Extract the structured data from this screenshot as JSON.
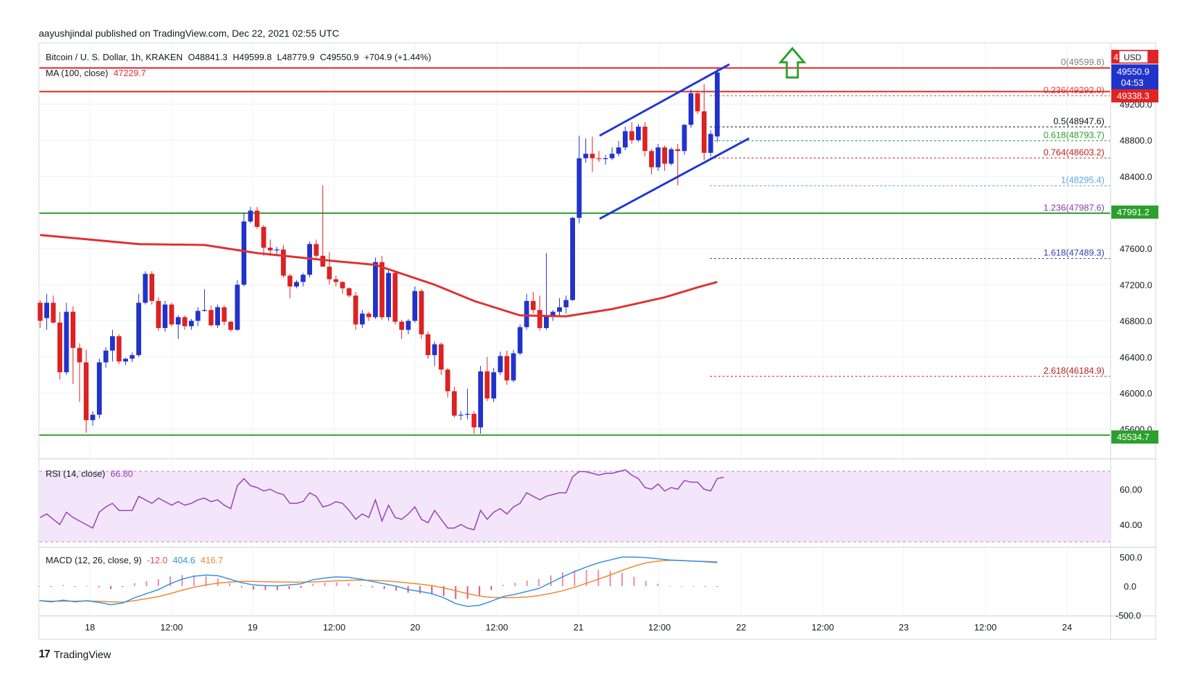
{
  "header": {
    "published": "aayushjindal published on TradingView.com, Dec 22, 2021 02:55 UTC"
  },
  "footer": {
    "brand": "TradingView",
    "mark": "17"
  },
  "legend": {
    "symbol": "Bitcoin / U. S. Dollar, 1h, KRAKEN",
    "open": "O48841.3",
    "high": "H49599.8",
    "low": "L48779.9",
    "close": "C49550.9",
    "change": "+704.9 (+1.44%)",
    "ma_label": "MA (100, close)",
    "ma_value": "47229.7",
    "rsi_label": "RSI (14, close)",
    "rsi_value": "66.80",
    "macd_label": "MACD (12, 26, close, 9)",
    "macd_hist": "-12.0",
    "macd_line": "404.6",
    "macd_signal": "416.7"
  },
  "colors": {
    "up": "#2233cc",
    "down": "#dd2222",
    "ma": "#e03030",
    "support": "#2ca02c",
    "resistance": "#e02424",
    "channel": "#1d35d8",
    "rsi": "#9c3db0",
    "macd": "#2f90e8",
    "signal": "#f0862a",
    "arrow": "#2ca02c"
  },
  "price_axis": {
    "currency": "USD",
    "ticks": [
      "49200.0",
      "48800.0",
      "48400.0",
      "48000.0",
      "47600.0",
      "47200.0",
      "46800.0",
      "46400.0",
      "46000.0",
      "45600.0"
    ],
    "current_price": "49550.9",
    "countdown": "04:53",
    "red_label": "49338.3",
    "green_label_upper": "47991.2",
    "green_label_lower": "45534.7",
    "top_partial": "4"
  },
  "time_axis": [
    "18",
    "12:00",
    "19",
    "12:00",
    "20",
    "12:00",
    "21",
    "12:00",
    "22",
    "12:00",
    "23",
    "12:00",
    "24"
  ],
  "fib_levels": [
    {
      "label": "0(49599.8)",
      "price": 49599.8,
      "color": "#808080"
    },
    {
      "label": "0.236(49292.0)",
      "price": 49292.0,
      "color": "#e04040"
    },
    {
      "label": "0.5(48947.6)",
      "price": 48947.6,
      "color": "#131722"
    },
    {
      "label": "0.618(48793.7)",
      "price": 48793.7,
      "color": "#2ca02c"
    },
    {
      "label": "0.764(48603.2)",
      "price": 48603.2,
      "color": "#c02020"
    },
    {
      "label": "1(48295.4)",
      "price": 48295.4,
      "color": "#5aa8e0"
    },
    {
      "label": "1.236(47987.6)",
      "price": 47987.6,
      "color": "#8a3ab0"
    },
    {
      "label": "1.618(47489.3)",
      "price": 47489.3,
      "color": "#3a3ab8"
    },
    {
      "label": "2.618(46184.9)",
      "price": 46184.9,
      "color": "#c02020"
    }
  ],
  "rsi_axis": [
    "60.00",
    "40.00"
  ],
  "macd_axis": [
    "500.0",
    "0.0",
    "-500.0"
  ],
  "chart_data": {
    "type": "candlestick",
    "title": "Bitcoin / U. S. Dollar, 1h, KRAKEN",
    "ylim": [
      45440,
      49800
    ],
    "resistance_levels": [
      49599.8,
      49338.3
    ],
    "support_levels": [
      47991.2,
      45534.7
    ],
    "candles": [
      [
        47000,
        47030,
        46720,
        46800
      ],
      [
        46830,
        47100,
        46700,
        47000
      ],
      [
        47000,
        47080,
        46770,
        46780
      ],
      [
        46780,
        46900,
        46150,
        46230
      ],
      [
        46230,
        47000,
        46200,
        46900
      ],
      [
        46900,
        46960,
        46100,
        46500
      ],
      [
        46500,
        46550,
        45900,
        46340
      ],
      [
        46340,
        46480,
        45560,
        45700
      ],
      [
        45700,
        45800,
        45640,
        45760
      ],
      [
        45760,
        46380,
        45720,
        46340
      ],
      [
        46340,
        46510,
        46280,
        46470
      ],
      [
        46470,
        46700,
        46350,
        46630
      ],
      [
        46630,
        46650,
        46320,
        46350
      ],
      [
        46350,
        46390,
        46310,
        46380
      ],
      [
        46380,
        46450,
        46340,
        46420
      ],
      [
        46420,
        47100,
        46400,
        47000
      ],
      [
        47000,
        47350,
        46980,
        47320
      ],
      [
        47320,
        47350,
        46980,
        47020
      ],
      [
        47020,
        47060,
        46690,
        46720
      ],
      [
        46720,
        47020,
        46680,
        46980
      ],
      [
        46980,
        47000,
        46740,
        46760
      ],
      [
        46760,
        46860,
        46600,
        46840
      ],
      [
        46840,
        46860,
        46700,
        46740
      ],
      [
        46740,
        46820,
        46700,
        46800
      ],
      [
        46800,
        46950,
        46740,
        46910
      ],
      [
        46910,
        47150,
        46900,
        46920
      ],
      [
        46920,
        46970,
        46740,
        46750
      ],
      [
        46750,
        46980,
        46720,
        46950
      ],
      [
        46950,
        46970,
        46750,
        46790
      ],
      [
        46790,
        46800,
        46680,
        46700
      ],
      [
        46700,
        47250,
        46690,
        47200
      ],
      [
        47200,
        48000,
        47180,
        47900
      ],
      [
        47900,
        48060,
        47880,
        48020
      ],
      [
        48020,
        48060,
        47820,
        47840
      ],
      [
        47840,
        47860,
        47520,
        47610
      ],
      [
        47610,
        47700,
        47520,
        47580
      ],
      [
        47580,
        47620,
        47530,
        47590
      ],
      [
        47590,
        47640,
        47280,
        47300
      ],
      [
        47300,
        47320,
        47050,
        47180
      ],
      [
        47180,
        47250,
        47160,
        47230
      ],
      [
        47230,
        47330,
        47180,
        47310
      ],
      [
        47310,
        47680,
        47280,
        47650
      ],
      [
        47650,
        47700,
        47500,
        47520
      ],
      [
        47520,
        48300,
        47420,
        47400
      ],
      [
        47400,
        47560,
        47200,
        47260
      ],
      [
        47260,
        47300,
        47180,
        47230
      ],
      [
        47230,
        47240,
        47100,
        47160
      ],
      [
        47160,
        47170,
        47060,
        47080
      ],
      [
        47080,
        47120,
        46700,
        46760
      ],
      [
        46760,
        46920,
        46720,
        46880
      ],
      [
        46880,
        46900,
        46800,
        46840
      ],
      [
        46840,
        47500,
        46820,
        47450
      ],
      [
        47450,
        47520,
        46810,
        46840
      ],
      [
        46840,
        47380,
        46800,
        47330
      ],
      [
        47330,
        47360,
        46760,
        46790
      ],
      [
        46790,
        46810,
        46600,
        46700
      ],
      [
        46700,
        46820,
        46650,
        46800
      ],
      [
        46800,
        47180,
        46780,
        47130
      ],
      [
        47130,
        47150,
        46600,
        46650
      ],
      [
        46650,
        46680,
        46380,
        46420
      ],
      [
        46420,
        46570,
        46300,
        46540
      ],
      [
        46540,
        46560,
        46200,
        46260
      ],
      [
        46260,
        46280,
        45950,
        46020
      ],
      [
        46020,
        46070,
        45730,
        45750
      ],
      [
        45750,
        45800,
        45700,
        45760
      ],
      [
        45760,
        46050,
        45710,
        45770
      ],
      [
        45770,
        45800,
        45550,
        45620
      ],
      [
        45620,
        46300,
        45550,
        46240
      ],
      [
        46240,
        46400,
        45910,
        45940
      ],
      [
        45940,
        46280,
        45900,
        46230
      ],
      [
        46230,
        46460,
        46200,
        46410
      ],
      [
        46410,
        46470,
        46090,
        46140
      ],
      [
        46140,
        46480,
        46120,
        46440
      ],
      [
        46440,
        46760,
        46420,
        46730
      ],
      [
        46730,
        47100,
        46700,
        47020
      ],
      [
        47020,
        47120,
        46880,
        46920
      ],
      [
        46920,
        47080,
        46690,
        46720
      ],
      [
        46720,
        47550,
        46700,
        46850
      ],
      [
        46850,
        46920,
        46800,
        46900
      ],
      [
        46900,
        47050,
        46860,
        46950
      ],
      [
        46950,
        47080,
        46880,
        47030
      ],
      [
        47030,
        47950,
        47020,
        47940
      ],
      [
        47940,
        48850,
        47880,
        48600
      ],
      [
        48600,
        48820,
        48550,
        48650
      ],
      [
        48650,
        48840,
        48450,
        48600
      ],
      [
        48600,
        48680,
        48560,
        48590
      ],
      [
        48590,
        48640,
        48530,
        48600
      ],
      [
        48600,
        48720,
        48580,
        48650
      ],
      [
        48650,
        48790,
        48620,
        48720
      ],
      [
        48720,
        48950,
        48690,
        48900
      ],
      [
        48900,
        49000,
        48760,
        48800
      ],
      [
        48800,
        48980,
        48780,
        48950
      ],
      [
        48950,
        49000,
        48620,
        48680
      ],
      [
        48680,
        48700,
        48420,
        48500
      ],
      [
        48500,
        48760,
        48460,
        48720
      ],
      [
        48720,
        48740,
        48460,
        48540
      ],
      [
        48540,
        48720,
        48520,
        48700
      ],
      [
        48700,
        48760,
        48300,
        48680
      ],
      [
        48680,
        48980,
        48640,
        48970
      ],
      [
        48970,
        49360,
        48940,
        49320
      ],
      [
        49320,
        49350,
        49090,
        49120
      ],
      [
        49120,
        49420,
        48580,
        48660
      ],
      [
        48660,
        48910,
        48620,
        48870
      ],
      [
        48841.3,
        49599.8,
        48779.9,
        49550.9
      ]
    ],
    "ma100": [
      [
        0,
        47750
      ],
      [
        15,
        47650
      ],
      [
        25,
        47640
      ],
      [
        33,
        47550
      ],
      [
        45,
        47460
      ],
      [
        51,
        47420
      ],
      [
        60,
        47200
      ],
      [
        66,
        47020
      ],
      [
        73,
        46860
      ],
      [
        80,
        46850
      ],
      [
        87,
        46930
      ],
      [
        95,
        47060
      ],
      [
        100,
        47170
      ],
      [
        103,
        47229.7
      ]
    ],
    "channel_upper": [
      [
        85,
        48850
      ],
      [
        104,
        49640
      ]
    ],
    "channel_lower": [
      [
        85,
        47930
      ],
      [
        107,
        48820
      ]
    ],
    "rsi": [
      44,
      46,
      43,
      40,
      47,
      44,
      42,
      40,
      38,
      47,
      50,
      52,
      48,
      48,
      48,
      56,
      54,
      52,
      55,
      53,
      51,
      53,
      51,
      52,
      54,
      55,
      53,
      54,
      51,
      49,
      62,
      66,
      62,
      61,
      59,
      60,
      58,
      57,
      52,
      52,
      53,
      58,
      56,
      50,
      51,
      53,
      52,
      48,
      43,
      46,
      44,
      54,
      42,
      51,
      44,
      43,
      46,
      50,
      43,
      41,
      48,
      43,
      38,
      38,
      40,
      38,
      37,
      48,
      43,
      47,
      49,
      46,
      50,
      52,
      58,
      56,
      54,
      56,
      57,
      58,
      58,
      67,
      70,
      70,
      69,
      68,
      69,
      69,
      70,
      71,
      68,
      66,
      61,
      60,
      63,
      59,
      61,
      60,
      65,
      64,
      64,
      60,
      59,
      66,
      66.8
    ],
    "macd_line": [
      -250,
      -270,
      -240,
      -270,
      -250,
      -280,
      -320,
      -290,
      -200,
      -130,
      -60,
      40,
      120,
      170,
      190,
      180,
      120,
      60,
      20,
      10,
      5,
      20,
      40,
      110,
      140,
      160,
      150,
      120,
      80,
      40,
      0,
      -60,
      -90,
      -130,
      -200,
      -300,
      -350,
      -330,
      -260,
      -180,
      -140,
      -90,
      -40,
      60,
      160,
      250,
      330,
      400,
      450,
      500,
      500,
      490,
      470,
      450,
      440,
      430,
      420,
      404.6
    ],
    "macd_signal": [
      -250,
      -260,
      -260,
      -260,
      -255,
      -262,
      -270,
      -275,
      -250,
      -215,
      -180,
      -130,
      -70,
      -20,
      20,
      50,
      70,
      80,
      80,
      76,
      72,
      70,
      68,
      72,
      80,
      90,
      100,
      104,
      100,
      90,
      76,
      55,
      35,
      10,
      -30,
      -80,
      -130,
      -170,
      -195,
      -200,
      -198,
      -186,
      -163,
      -125,
      -80,
      -20,
      50,
      120,
      190,
      270,
      340,
      400,
      430,
      445,
      440,
      430,
      425,
      416.7
    ]
  }
}
